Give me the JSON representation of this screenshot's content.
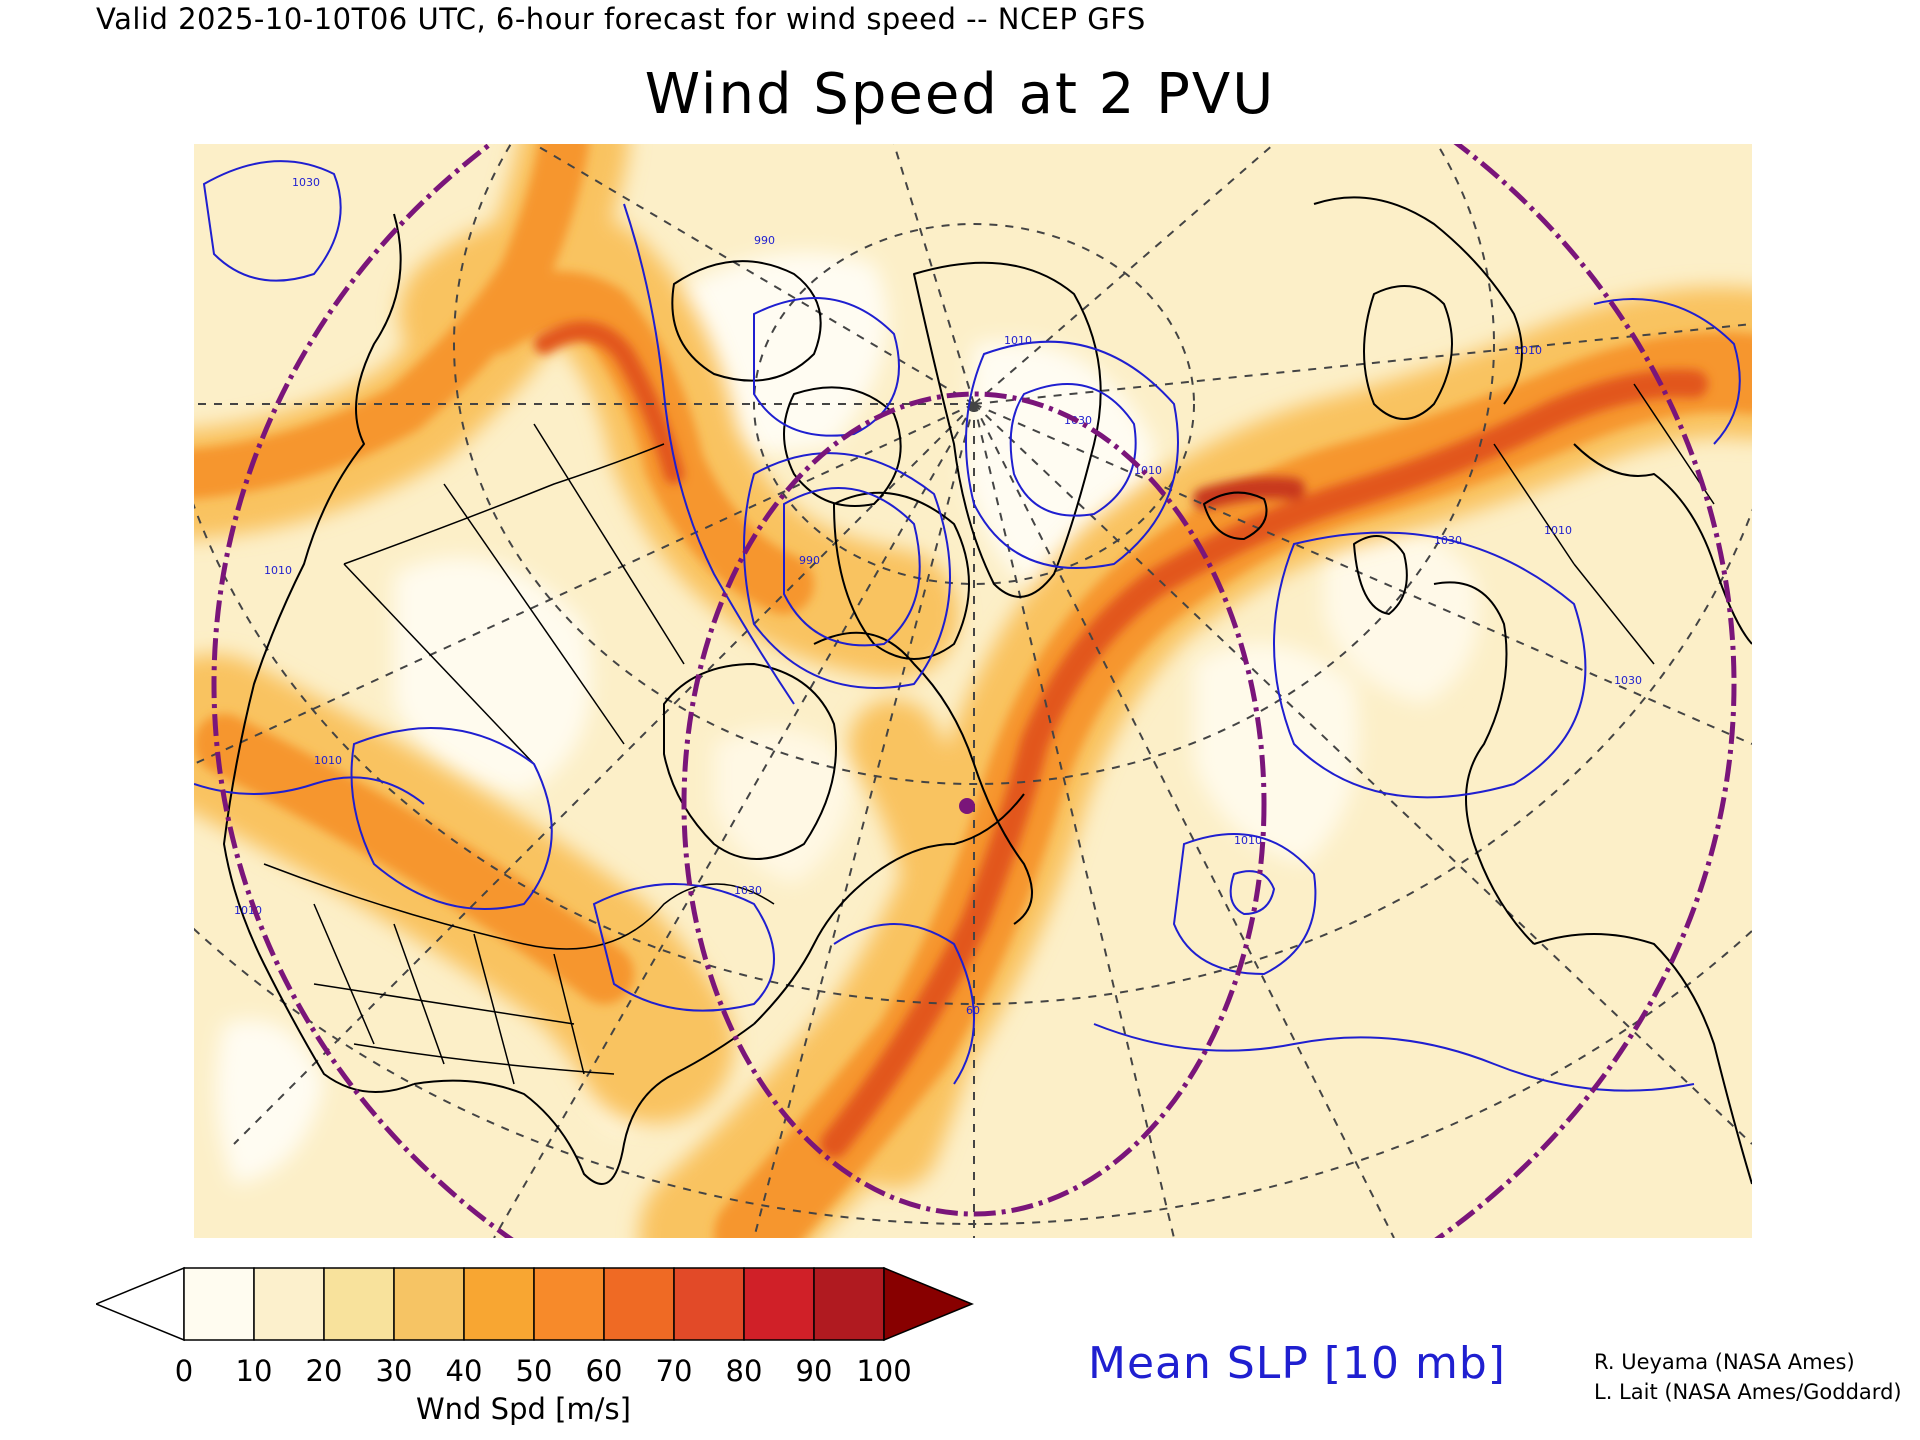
{
  "header": {
    "valid_line": "Valid 2025-10-10T06 UTC, 6-hour forecast for wind speed -- NCEP GFS",
    "title": "Wind Speed at 2 PVU"
  },
  "map": {
    "fill_variable": "Wind speed",
    "contour_variable": "Mean SLP",
    "contour_labels": [
      "1030",
      "1010",
      "990",
      "1010",
      "1030",
      "1010",
      "1010",
      "1030",
      "1010",
      "1030",
      "1010",
      "1010",
      "990",
      "1010",
      "1030",
      "60"
    ],
    "colors": {
      "jet_core": "#e2571d",
      "jet_mid": "#f6962d",
      "jet_outer": "#f9c361",
      "background": "#fcefc8",
      "contours": "#1f1fd0",
      "polar_circle": "#7a157a",
      "coast": "#000000",
      "grid": "#444444"
    }
  },
  "colorbar": {
    "ticks": [
      "0",
      "10",
      "20",
      "30",
      "40",
      "50",
      "60",
      "70",
      "80",
      "90",
      "100"
    ],
    "label": "Wnd Spd [m/s]",
    "colors": [
      "#ffffff",
      "#fffcf0",
      "#fcf0cc",
      "#f8e29c",
      "#f6c464",
      "#f8a632",
      "#f78a2a",
      "#ef6a24",
      "#e24a28",
      "#d02028",
      "#b01a20",
      "#880000"
    ]
  },
  "legend": {
    "slp_label": "Mean SLP [10 mb]"
  },
  "credits": {
    "line1": "R. Ueyama (NASA Ames)",
    "line2": "L. Lait (NASA Ames/Goddard)"
  }
}
